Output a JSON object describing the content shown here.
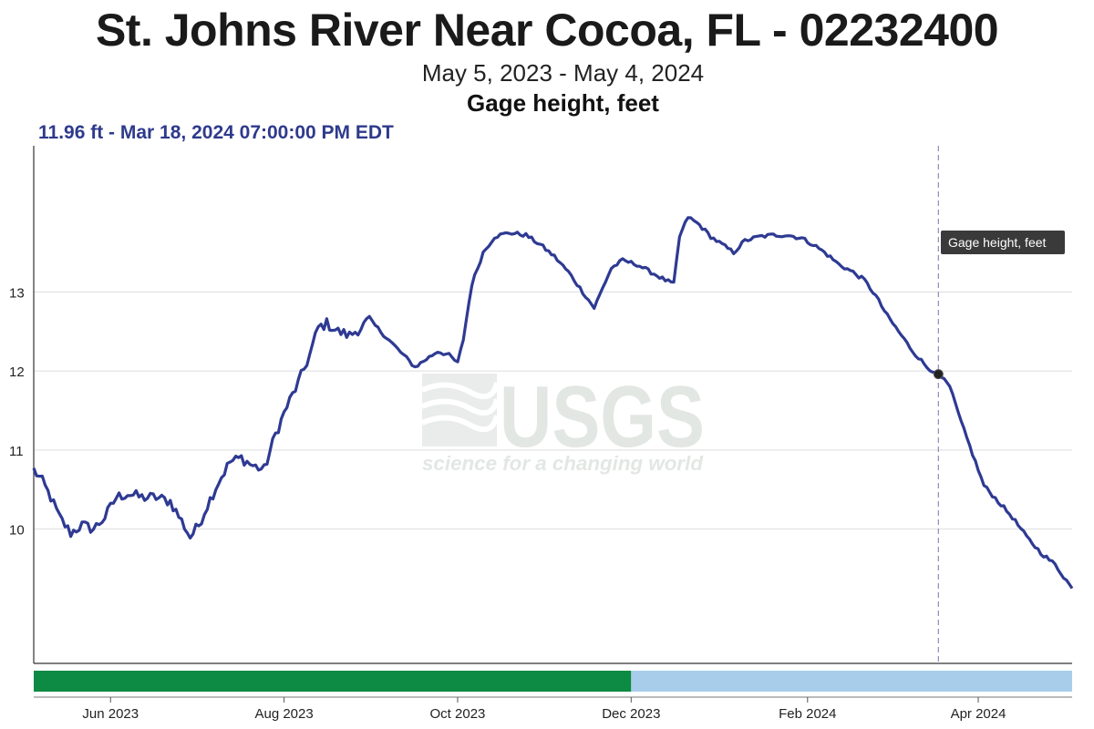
{
  "header": {
    "title": "St. Johns River Near Cocoa, FL - 02232400",
    "date_range": "May 5, 2023 - May 4, 2024",
    "parameter": "Gage height, feet",
    "readout": "11.96 ft - Mar 18, 2024 07:00:00 PM EDT"
  },
  "watermark": {
    "text": "USGS",
    "tagline": "science for a changing world"
  },
  "tooltip": {
    "label": "Gage height, feet"
  },
  "colors": {
    "series": "#2e3a92",
    "approved": "#0d8a43",
    "provisional": "#a8cdea",
    "grid": "#dddddd",
    "axis": "#333333",
    "cursor": "#9a86b8",
    "tooltip_bg": "#3a3a3a"
  },
  "chart_data": {
    "type": "line",
    "title": "St. Johns River Near Cocoa, FL - 02232400",
    "subtitle": "May 5, 2023 - May 4, 2024",
    "ylabel": "Gage height, feet",
    "xlim": [
      "2023-05-05",
      "2024-05-04"
    ],
    "ylim": [
      8.3,
      14.85
    ],
    "y_ticks": [
      10,
      11,
      12,
      13
    ],
    "x_ticks": [
      {
        "date": "2023-06-01",
        "label": "Jun 2023"
      },
      {
        "date": "2023-08-01",
        "label": "Aug 2023"
      },
      {
        "date": "2023-10-01",
        "label": "Oct 2023"
      },
      {
        "date": "2023-12-01",
        "label": "Dec 2023"
      },
      {
        "date": "2024-02-01",
        "label": "Feb 2024"
      },
      {
        "date": "2024-04-01",
        "label": "Apr 2024"
      }
    ],
    "grid": true,
    "legend": "none",
    "series": [
      {
        "points": [
          [
            "2023-05-05",
            10.75
          ],
          [
            "2023-05-08",
            10.6
          ],
          [
            "2023-05-11",
            10.4
          ],
          [
            "2023-05-14",
            10.15
          ],
          [
            "2023-05-18",
            9.95
          ],
          [
            "2023-05-22",
            10.05
          ],
          [
            "2023-05-26",
            10.0
          ],
          [
            "2023-05-30",
            10.15
          ],
          [
            "2023-06-03",
            10.4
          ],
          [
            "2023-06-07",
            10.45
          ],
          [
            "2023-06-12",
            10.4
          ],
          [
            "2023-06-17",
            10.4
          ],
          [
            "2023-06-22",
            10.35
          ],
          [
            "2023-06-26",
            10.1
          ],
          [
            "2023-06-29",
            9.9
          ],
          [
            "2023-07-02",
            10.05
          ],
          [
            "2023-07-05",
            10.3
          ],
          [
            "2023-07-09",
            10.6
          ],
          [
            "2023-07-13",
            10.85
          ],
          [
            "2023-07-17",
            10.9
          ],
          [
            "2023-07-21",
            10.8
          ],
          [
            "2023-07-25",
            10.75
          ],
          [
            "2023-07-29",
            11.2
          ],
          [
            "2023-08-02",
            11.55
          ],
          [
            "2023-08-06",
            11.85
          ],
          [
            "2023-08-10",
            12.2
          ],
          [
            "2023-08-13",
            12.55
          ],
          [
            "2023-08-16",
            12.6
          ],
          [
            "2023-08-20",
            12.5
          ],
          [
            "2023-08-24",
            12.45
          ],
          [
            "2023-08-28",
            12.55
          ],
          [
            "2023-08-31",
            12.65
          ],
          [
            "2023-09-04",
            12.5
          ],
          [
            "2023-09-08",
            12.35
          ],
          [
            "2023-09-12",
            12.2
          ],
          [
            "2023-09-16",
            12.05
          ],
          [
            "2023-09-20",
            12.15
          ],
          [
            "2023-09-24",
            12.25
          ],
          [
            "2023-09-28",
            12.2
          ],
          [
            "2023-10-01",
            12.1
          ],
          [
            "2023-10-03",
            12.4
          ],
          [
            "2023-10-06",
            13.1
          ],
          [
            "2023-10-10",
            13.5
          ],
          [
            "2023-10-14",
            13.7
          ],
          [
            "2023-10-19",
            13.75
          ],
          [
            "2023-10-25",
            13.72
          ],
          [
            "2023-10-30",
            13.6
          ],
          [
            "2023-11-04",
            13.45
          ],
          [
            "2023-11-09",
            13.25
          ],
          [
            "2023-11-14",
            13.0
          ],
          [
            "2023-11-18",
            12.8
          ],
          [
            "2023-11-21",
            13.05
          ],
          [
            "2023-11-24",
            13.3
          ],
          [
            "2023-11-28",
            13.4
          ],
          [
            "2023-12-03",
            13.35
          ],
          [
            "2023-12-08",
            13.25
          ],
          [
            "2023-12-13",
            13.15
          ],
          [
            "2023-12-16",
            13.1
          ],
          [
            "2023-12-18",
            13.7
          ],
          [
            "2023-12-21",
            13.95
          ],
          [
            "2023-12-25",
            13.85
          ],
          [
            "2023-12-29",
            13.7
          ],
          [
            "2024-01-02",
            13.6
          ],
          [
            "2024-01-06",
            13.5
          ],
          [
            "2024-01-10",
            13.65
          ],
          [
            "2024-01-15",
            13.7
          ],
          [
            "2024-01-20",
            13.72
          ],
          [
            "2024-01-25",
            13.72
          ],
          [
            "2024-01-30",
            13.68
          ],
          [
            "2024-02-03",
            13.6
          ],
          [
            "2024-02-07",
            13.5
          ],
          [
            "2024-02-12",
            13.35
          ],
          [
            "2024-02-17",
            13.25
          ],
          [
            "2024-02-21",
            13.15
          ],
          [
            "2024-02-25",
            12.95
          ],
          [
            "2024-02-29",
            12.7
          ],
          [
            "2024-03-04",
            12.5
          ],
          [
            "2024-03-09",
            12.25
          ],
          [
            "2024-03-14",
            12.05
          ],
          [
            "2024-03-18",
            11.96
          ],
          [
            "2024-03-22",
            11.8
          ],
          [
            "2024-03-26",
            11.35
          ],
          [
            "2024-03-30",
            10.95
          ],
          [
            "2024-04-03",
            10.55
          ],
          [
            "2024-04-08",
            10.35
          ],
          [
            "2024-04-13",
            10.15
          ],
          [
            "2024-04-18",
            9.9
          ],
          [
            "2024-04-23",
            9.7
          ],
          [
            "2024-04-28",
            9.55
          ],
          [
            "2024-05-02",
            9.35
          ],
          [
            "2024-05-04",
            9.25
          ]
        ]
      }
    ],
    "cursor": {
      "date": "2024-03-18",
      "value": 11.96
    },
    "status_bar": [
      {
        "from": "2023-05-05",
        "to": "2023-12-01",
        "status": "approved"
      },
      {
        "from": "2023-12-01",
        "to": "2024-05-04",
        "status": "provisional"
      }
    ]
  }
}
